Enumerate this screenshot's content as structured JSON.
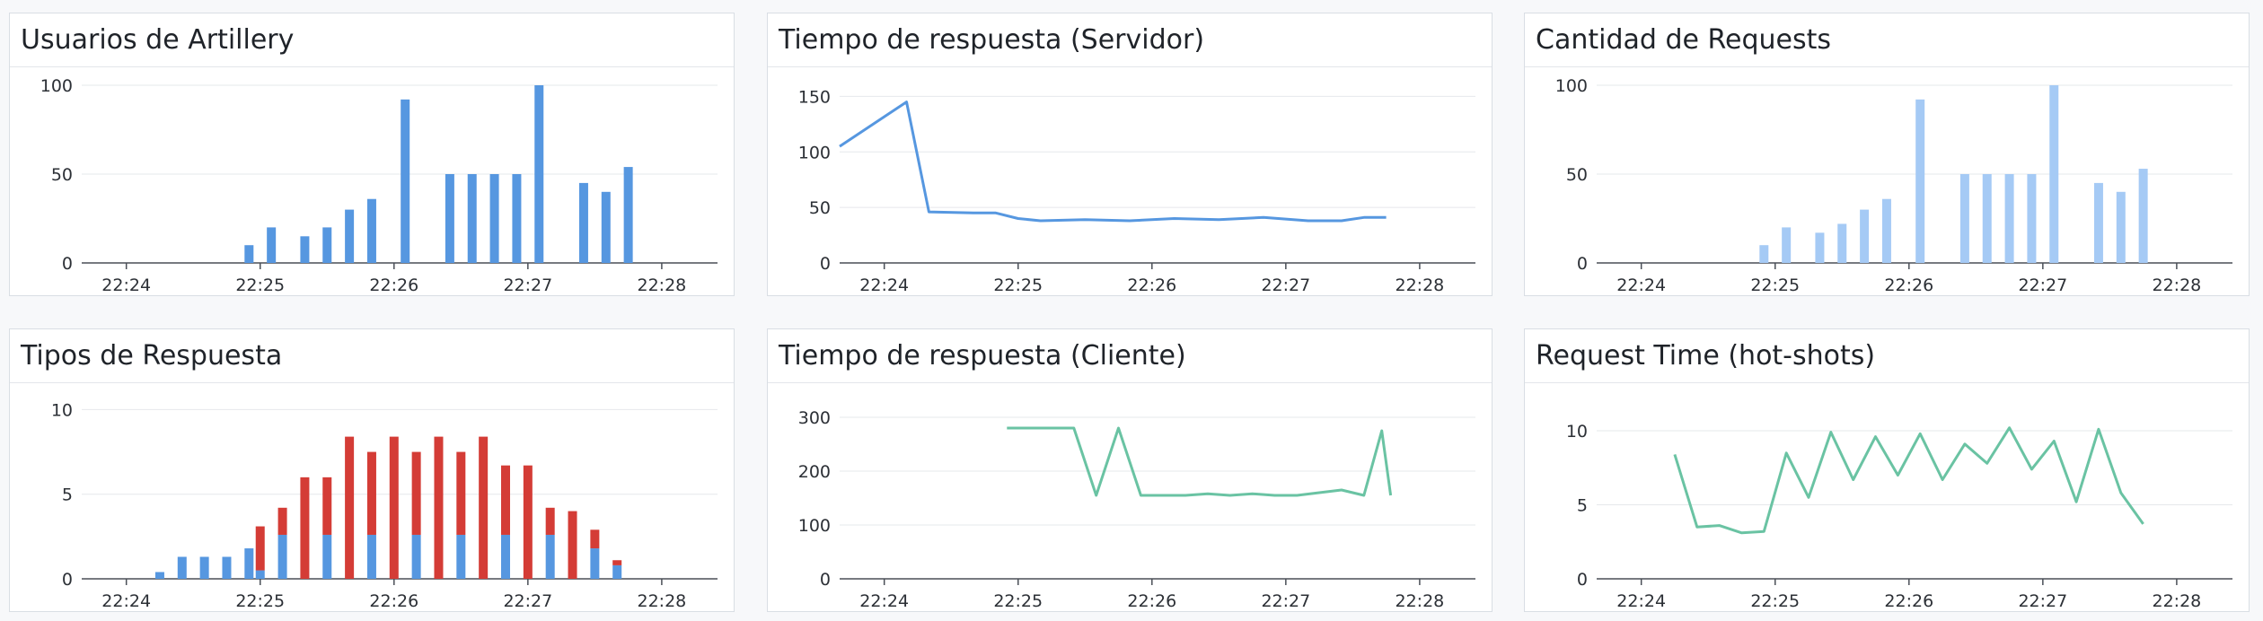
{
  "colors": {
    "blue": "#5697e0",
    "light_blue": "#a5caf5",
    "red": "#d43c36",
    "teal": "#6ac3a3",
    "grid": "#e6e8eb",
    "axis": "#4a4f57"
  },
  "x_ticks": [
    "22:24",
    "22:25",
    "22:26",
    "22:27",
    "22:28"
  ],
  "panels": [
    {
      "title": "Usuarios de Artillery"
    },
    {
      "title": "Tiempo de respuesta (Servidor)"
    },
    {
      "title": "Cantidad de Requests"
    },
    {
      "title": "Tipos de Respuesta"
    },
    {
      "title": "Tiempo de respuesta (Cliente)"
    },
    {
      "title": "Request Time (hot-shots)"
    }
  ],
  "chart_data": [
    {
      "type": "bar",
      "title": "Usuarios de Artillery",
      "color": "blue",
      "x_ticks": [
        "22:24",
        "22:25",
        "22:26",
        "22:27",
        "22:28"
      ],
      "y_ticks": [
        0,
        50,
        100
      ],
      "ylim": [
        0,
        100
      ],
      "xlim": [
        "22:23:40",
        "22:28:25"
      ],
      "x": [
        "22:24:55",
        "22:25:05",
        "22:25:20",
        "22:25:30",
        "22:25:40",
        "22:25:50",
        "22:26:05",
        "22:26:25",
        "22:26:35",
        "22:26:45",
        "22:26:55",
        "22:27:05",
        "22:27:25",
        "22:27:35",
        "22:27:45"
      ],
      "values": [
        10,
        20,
        15,
        20,
        30,
        36,
        92,
        50,
        50,
        50,
        50,
        100,
        45,
        40,
        54
      ]
    },
    {
      "type": "line",
      "title": "Tiempo de respuesta (Servidor)",
      "color": "blue",
      "x_ticks": [
        "22:24",
        "22:25",
        "22:26",
        "22:27",
        "22:28"
      ],
      "y_ticks": [
        0,
        50,
        100,
        150
      ],
      "ylim": [
        0,
        160
      ],
      "xlim": [
        "22:23:40",
        "22:28:25"
      ],
      "x": [
        "22:23:40",
        "22:24:10",
        "22:24:20",
        "22:24:40",
        "22:24:50",
        "22:25:00",
        "22:25:10",
        "22:25:30",
        "22:25:50",
        "22:26:10",
        "22:26:30",
        "22:26:50",
        "22:27:10",
        "22:27:25",
        "22:27:35",
        "22:27:45"
      ],
      "values": [
        105,
        145,
        46,
        45,
        45,
        40,
        38,
        39,
        38,
        40,
        39,
        41,
        38,
        38,
        41,
        41
      ]
    },
    {
      "type": "bar",
      "title": "Cantidad de Requests",
      "color": "light_blue",
      "x_ticks": [
        "22:24",
        "22:25",
        "22:26",
        "22:27",
        "22:28"
      ],
      "y_ticks": [
        0,
        50,
        100
      ],
      "ylim": [
        0,
        100
      ],
      "xlim": [
        "22:23:40",
        "22:28:25"
      ],
      "x": [
        "22:24:55",
        "22:25:05",
        "22:25:20",
        "22:25:30",
        "22:25:40",
        "22:25:50",
        "22:26:05",
        "22:26:25",
        "22:26:35",
        "22:26:45",
        "22:26:55",
        "22:27:05",
        "22:27:25",
        "22:27:35",
        "22:27:45"
      ],
      "values": [
        10,
        20,
        17,
        22,
        30,
        36,
        92,
        50,
        50,
        50,
        50,
        100,
        45,
        40,
        53
      ]
    },
    {
      "type": "bar",
      "title": "Tipos de Respuesta",
      "stacked": true,
      "x_ticks": [
        "22:24",
        "22:25",
        "22:26",
        "22:27",
        "22:28"
      ],
      "y_ticks": [
        0,
        5,
        10
      ],
      "ylim": [
        0,
        10.5
      ],
      "xlim": [
        "22:23:40",
        "22:28:25"
      ],
      "x": [
        "22:24:15",
        "22:24:25",
        "22:24:35",
        "22:24:45",
        "22:24:55",
        "22:25:00",
        "22:25:10",
        "22:25:20",
        "22:25:30",
        "22:25:40",
        "22:25:50",
        "22:26:00",
        "22:26:10",
        "22:26:20",
        "22:26:30",
        "22:26:40",
        "22:26:50",
        "22:27:00",
        "22:27:10",
        "22:27:20",
        "22:27:30",
        "22:27:40"
      ],
      "series": [
        {
          "color": "blue",
          "values": [
            0.4,
            1.3,
            1.3,
            1.3,
            1.8,
            0.5,
            2.6,
            0,
            2.6,
            0,
            2.6,
            0,
            2.6,
            0,
            2.6,
            0,
            2.6,
            0,
            2.6,
            0,
            1.8,
            0.8
          ]
        },
        {
          "color": "red",
          "values": [
            0,
            0,
            0,
            0,
            0,
            2.6,
            1.6,
            6.0,
            3.4,
            8.4,
            4.9,
            8.4,
            4.9,
            8.4,
            4.9,
            8.4,
            4.1,
            6.7,
            1.6,
            4.0,
            1.1,
            0.3
          ]
        }
      ]
    },
    {
      "type": "line",
      "title": "Tiempo de respuesta (Cliente)",
      "color": "teal",
      "x_ticks": [
        "22:24",
        "22:25",
        "22:26",
        "22:27",
        "22:28"
      ],
      "y_ticks": [
        0,
        100,
        200,
        300
      ],
      "ylim": [
        0,
        330
      ],
      "xlim": [
        "22:23:40",
        "22:28:25"
      ],
      "x": [
        "22:24:55",
        "22:25:25",
        "22:25:35",
        "22:25:45",
        "22:25:55",
        "22:26:05",
        "22:26:15",
        "22:26:25",
        "22:26:35",
        "22:26:45",
        "22:26:55",
        "22:27:05",
        "22:27:15",
        "22:27:25",
        "22:27:35",
        "22:27:43",
        "22:27:47"
      ],
      "values": [
        280,
        280,
        155,
        280,
        155,
        155,
        155,
        158,
        155,
        158,
        155,
        155,
        160,
        165,
        155,
        275,
        155
      ]
    },
    {
      "type": "line",
      "title": "Request Time (hot-shots)",
      "color": "teal",
      "x_ticks": [
        "22:24",
        "22:25",
        "22:26",
        "22:27",
        "22:28"
      ],
      "y_ticks": [
        0,
        5,
        10
      ],
      "ylim": [
        0,
        12
      ],
      "xlim": [
        "22:23:40",
        "22:28:25"
      ],
      "x": [
        "22:24:15",
        "22:24:25",
        "22:24:35",
        "22:24:45",
        "22:24:55",
        "22:25:05",
        "22:25:15",
        "22:25:25",
        "22:25:35",
        "22:25:45",
        "22:25:55",
        "22:26:05",
        "22:26:15",
        "22:26:25",
        "22:26:35",
        "22:26:45",
        "22:26:55",
        "22:27:05",
        "22:27:15",
        "22:27:25",
        "22:27:35",
        "22:27:45"
      ],
      "values": [
        8.4,
        3.5,
        3.6,
        3.1,
        3.2,
        8.5,
        5.5,
        9.9,
        6.7,
        9.6,
        7.0,
        9.8,
        6.7,
        9.1,
        7.8,
        10.2,
        7.4,
        9.3,
        5.2,
        10.1,
        5.8,
        3.7
      ]
    }
  ]
}
